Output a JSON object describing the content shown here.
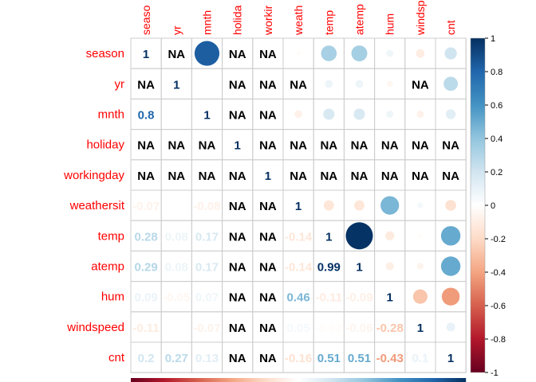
{
  "chart_data": {
    "type": "heatmap",
    "subtype": "correlation-matrix-mixed",
    "lower_method": "number",
    "upper_method": "circle",
    "row_labels": [
      "season",
      "yr",
      "mnth",
      "holiday",
      "workingday",
      "weathersit",
      "temp",
      "atemp",
      "hum",
      "windspeed",
      "cnt"
    ],
    "col_labels": [
      "seaso",
      "yr",
      "mnth",
      "holida",
      "workir",
      "weath",
      "temp",
      "atemp",
      "hum",
      "windsp",
      "cnt"
    ],
    "matrix": [
      [
        1,
        null,
        0.83,
        null,
        null,
        -0.02,
        0.33,
        0.34,
        0.07,
        -0.1,
        0.2
      ],
      [
        null,
        1,
        -0.01,
        null,
        null,
        null,
        0.08,
        0.08,
        -0.05,
        null,
        0.27
      ],
      [
        0.8,
        -0.01,
        1,
        null,
        null,
        -0.08,
        0.17,
        0.17,
        0.07,
        -0.07,
        0.13
      ],
      [
        null,
        null,
        null,
        1,
        null,
        null,
        null,
        null,
        null,
        null,
        null
      ],
      [
        null,
        null,
        null,
        null,
        1,
        null,
        null,
        null,
        null,
        null,
        null
      ],
      [
        -0.07,
        -0.01,
        -0.08,
        null,
        null,
        1,
        -0.14,
        -0.14,
        0.46,
        0.05,
        -0.16
      ],
      [
        0.28,
        0.08,
        0.17,
        null,
        null,
        -0.14,
        1,
        0.99,
        -0.11,
        -0.02,
        0.51
      ],
      [
        0.29,
        0.08,
        0.17,
        null,
        null,
        -0.14,
        0.99,
        1,
        -0.09,
        -0.06,
        0.51
      ],
      [
        0.09,
        -0.05,
        0.07,
        null,
        null,
        0.46,
        -0.11,
        -0.09,
        1,
        -0.28,
        -0.43
      ],
      [
        -0.11,
        -0.01,
        -0.07,
        null,
        null,
        0.05,
        -0.02,
        -0.06,
        -0.28,
        1,
        0.1
      ],
      [
        0.2,
        0.27,
        0.13,
        null,
        null,
        -0.16,
        0.51,
        0.51,
        -0.43,
        0.1,
        1
      ]
    ],
    "na_label": "NA",
    "legend": {
      "position": "right",
      "ticks": [
        "1",
        "0.8",
        "0.6",
        "0.4",
        "0.2",
        "0",
        "-0.2",
        "-0.4",
        "-0.6",
        "-0.8",
        "-1"
      ],
      "range": [
        -1,
        1
      ]
    },
    "colors": {
      "label": "#ff0000",
      "grid": "#cccccc",
      "na_text": "#000000",
      "palette": [
        "#67001f",
        "#b2182b",
        "#d6604d",
        "#f4a582",
        "#fddbc7",
        "#ffffff",
        "#d1e5f0",
        "#92c5de",
        "#4393c3",
        "#2166ac",
        "#053061"
      ]
    },
    "grid": true
  }
}
